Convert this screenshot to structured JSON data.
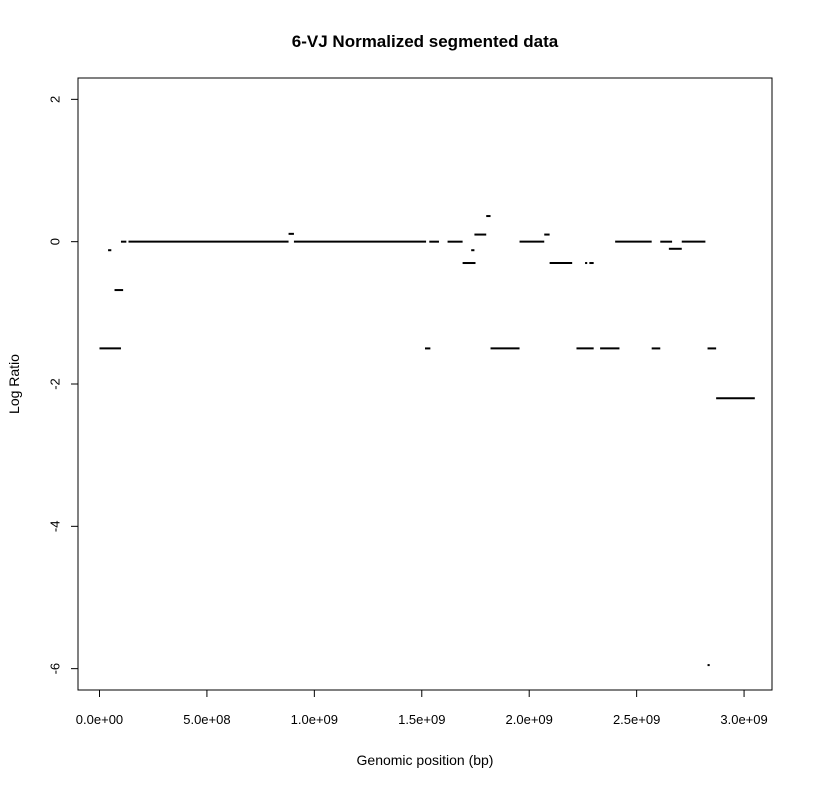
{
  "chart_data": {
    "type": "line",
    "title": "6-VJ Normalized segmented data",
    "xlabel": "Genomic position (bp)",
    "ylabel": "Log Ratio",
    "xlim": [
      -100000000,
      3130000000
    ],
    "ylim": [
      -6.3,
      2.3
    ],
    "x_ticks": [
      0,
      500000000,
      1000000000,
      1500000000,
      2000000000,
      2500000000,
      3000000000
    ],
    "x_tick_labels": [
      "0.0e+00",
      "5.0e+08",
      "1.0e+09",
      "1.5e+09",
      "2.0e+09",
      "2.5e+09",
      "3.0e+09"
    ],
    "y_ticks": [
      2,
      0,
      -2,
      -4,
      -6
    ],
    "y_tick_labels": [
      "2",
      "0",
      "-2",
      "-4",
      "-6"
    ],
    "grid": false,
    "legend": "none",
    "line_color": "#000000",
    "segments": [
      {
        "x0": 0,
        "x1": 100000000,
        "y": -1.5
      },
      {
        "x0": 40000000,
        "x1": 55000000,
        "y": -0.12
      },
      {
        "x0": 70000000,
        "x1": 110000000,
        "y": -0.68
      },
      {
        "x0": 100000000,
        "x1": 125000000,
        "y": 0.0
      },
      {
        "x0": 135000000,
        "x1": 880000000,
        "y": 0.0
      },
      {
        "x0": 880000000,
        "x1": 905000000,
        "y": 0.11
      },
      {
        "x0": 905000000,
        "x1": 1520000000,
        "y": 0.0
      },
      {
        "x0": 1515000000,
        "x1": 1540000000,
        "y": -1.5
      },
      {
        "x0": 1535000000,
        "x1": 1580000000,
        "y": 0.0
      },
      {
        "x0": 1620000000,
        "x1": 1690000000,
        "y": 0.0
      },
      {
        "x0": 1690000000,
        "x1": 1750000000,
        "y": -0.3
      },
      {
        "x0": 1730000000,
        "x1": 1745000000,
        "y": -0.12
      },
      {
        "x0": 1745000000,
        "x1": 1800000000,
        "y": 0.1
      },
      {
        "x0": 1800000000,
        "x1": 1820000000,
        "y": 0.36
      },
      {
        "x0": 1820000000,
        "x1": 1955000000,
        "y": -1.5
      },
      {
        "x0": 1955000000,
        "x1": 2070000000,
        "y": 0.0
      },
      {
        "x0": 2070000000,
        "x1": 2095000000,
        "y": 0.1
      },
      {
        "x0": 2095000000,
        "x1": 2200000000,
        "y": -0.3
      },
      {
        "x0": 2220000000,
        "x1": 2300000000,
        "y": -1.5
      },
      {
        "x0": 2260000000,
        "x1": 2270000000,
        "y": -0.3
      },
      {
        "x0": 2280000000,
        "x1": 2300000000,
        "y": -0.3
      },
      {
        "x0": 2330000000,
        "x1": 2420000000,
        "y": -1.5
      },
      {
        "x0": 2400000000,
        "x1": 2570000000,
        "y": 0.0
      },
      {
        "x0": 2570000000,
        "x1": 2610000000,
        "y": -1.5
      },
      {
        "x0": 2610000000,
        "x1": 2665000000,
        "y": 0.0
      },
      {
        "x0": 2650000000,
        "x1": 2710000000,
        "y": -0.1
      },
      {
        "x0": 2710000000,
        "x1": 2820000000,
        "y": 0.0
      },
      {
        "x0": 2830000000,
        "x1": 2840000000,
        "y": -5.95
      },
      {
        "x0": 2830000000,
        "x1": 2870000000,
        "y": -1.5
      },
      {
        "x0": 2870000000,
        "x1": 3050000000,
        "y": -2.2
      }
    ]
  }
}
